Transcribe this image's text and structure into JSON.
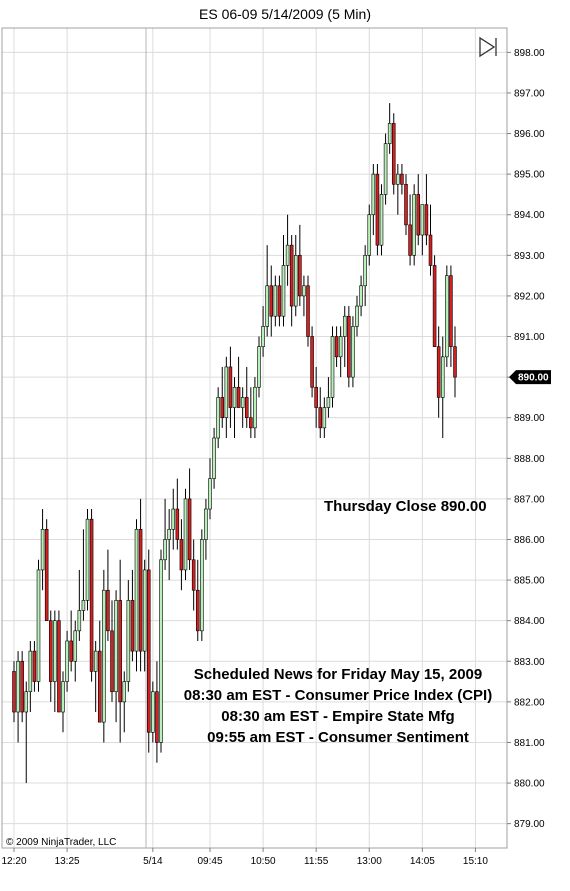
{
  "chart_data": {
    "type": "candlestick",
    "title": "ES 06-09  5/14/2009 (5 Min)",
    "ylim": [
      878.4,
      898.6
    ],
    "y_ticks": [
      "879.00",
      "880.00",
      "881.00",
      "882.00",
      "883.00",
      "884.00",
      "885.00",
      "886.00",
      "887.00",
      "888.00",
      "889.00",
      "890.00",
      "891.00",
      "892.00",
      "893.00",
      "894.00",
      "895.00",
      "896.00",
      "897.00",
      "898.00"
    ],
    "x_ticks": [
      "12:20",
      "13:25",
      "5/14",
      "09:45",
      "10:50",
      "11:55",
      "13:00",
      "14:05",
      "15:10"
    ],
    "last_price_label": "890.00",
    "grid": true,
    "colors": {
      "up": "#b9f0b9",
      "down": "#d42020",
      "wick": "#000000",
      "grid": "#dcdcdc",
      "last_price_bg": "#000000"
    },
    "candles": [
      [
        882.75,
        883.0,
        881.5,
        881.75
      ],
      [
        881.75,
        883.25,
        881.0,
        883.0
      ],
      [
        883.0,
        883.25,
        881.5,
        881.75
      ],
      [
        881.75,
        882.5,
        880.0,
        882.25
      ],
      [
        882.25,
        883.5,
        881.75,
        883.25
      ],
      [
        883.25,
        883.5,
        882.25,
        882.5
      ],
      [
        882.5,
        885.5,
        882.25,
        885.25
      ],
      [
        885.25,
        886.75,
        884.75,
        886.25
      ],
      [
        886.25,
        886.5,
        884.0,
        884.0
      ],
      [
        884.0,
        884.25,
        882.0,
        882.5
      ],
      [
        882.5,
        884.25,
        881.75,
        884.0
      ],
      [
        884.0,
        884.25,
        881.75,
        881.75
      ],
      [
        881.75,
        882.75,
        881.25,
        882.5
      ],
      [
        882.5,
        883.75,
        882.25,
        883.5
      ],
      [
        883.5,
        884.25,
        882.75,
        883.0
      ],
      [
        883.0,
        884.0,
        882.5,
        883.75
      ],
      [
        883.75,
        885.25,
        883.5,
        884.25
      ],
      [
        884.25,
        886.25,
        884.0,
        884.5
      ],
      [
        884.5,
        886.75,
        884.25,
        886.5
      ],
      [
        886.5,
        886.75,
        882.5,
        882.75
      ],
      [
        882.75,
        883.5,
        881.75,
        883.25
      ],
      [
        883.25,
        884.0,
        881.5,
        881.5
      ],
      [
        881.5,
        885.25,
        881.0,
        884.75
      ],
      [
        884.75,
        885.75,
        883.5,
        883.75
      ],
      [
        883.75,
        884.5,
        882.0,
        882.25
      ],
      [
        882.25,
        884.75,
        881.5,
        884.5
      ],
      [
        884.5,
        885.5,
        881.0,
        882.0
      ],
      [
        882.0,
        882.75,
        881.25,
        882.5
      ],
      [
        882.5,
        885.0,
        882.25,
        884.5
      ],
      [
        884.5,
        885.25,
        883.0,
        883.25
      ],
      [
        883.25,
        886.5,
        882.75,
        886.25
      ],
      [
        886.25,
        887.0,
        882.75,
        883.25
      ],
      [
        883.25,
        885.5,
        882.75,
        885.25
      ],
      [
        885.25,
        885.75,
        880.75,
        881.25
      ],
      [
        881.25,
        882.5,
        881.0,
        882.25
      ],
      [
        882.25,
        883.0,
        880.5,
        881.0
      ],
      [
        881.0,
        885.75,
        880.75,
        885.5
      ],
      [
        885.5,
        887.0,
        885.25,
        886.0
      ],
      [
        886.0,
        886.75,
        885.0,
        886.25
      ],
      [
        886.25,
        887.25,
        885.75,
        886.75
      ],
      [
        886.75,
        887.5,
        885.75,
        886.0
      ],
      [
        886.0,
        886.5,
        884.75,
        885.25
      ],
      [
        885.25,
        887.25,
        885.0,
        887.0
      ],
      [
        887.0,
        887.75,
        885.25,
        885.5
      ],
      [
        885.5,
        886.0,
        884.25,
        884.75
      ],
      [
        884.75,
        885.5,
        883.5,
        883.75
      ],
      [
        883.75,
        886.25,
        883.5,
        886.0
      ],
      [
        886.0,
        887.0,
        885.5,
        886.75
      ],
      [
        886.75,
        888.0,
        886.5,
        887.5
      ],
      [
        887.5,
        888.75,
        887.25,
        888.5
      ],
      [
        888.5,
        889.75,
        888.25,
        889.5
      ],
      [
        889.5,
        890.25,
        888.75,
        889.0
      ],
      [
        889.0,
        890.5,
        888.5,
        890.25
      ],
      [
        890.25,
        890.75,
        888.75,
        889.25
      ],
      [
        889.25,
        890.0,
        888.5,
        889.75
      ],
      [
        889.75,
        890.5,
        889.25,
        889.25
      ],
      [
        889.25,
        889.75,
        888.75,
        889.5
      ],
      [
        889.5,
        890.25,
        888.75,
        889.0
      ],
      [
        889.0,
        889.75,
        888.5,
        888.75
      ],
      [
        888.75,
        890.0,
        888.5,
        889.75
      ],
      [
        889.75,
        891.0,
        889.5,
        890.75
      ],
      [
        890.75,
        891.75,
        890.5,
        891.25
      ],
      [
        891.25,
        893.25,
        891.0,
        892.25
      ],
      [
        892.25,
        892.75,
        891.0,
        891.5
      ],
      [
        891.5,
        892.5,
        891.25,
        892.25
      ],
      [
        892.25,
        892.5,
        891.25,
        891.5
      ],
      [
        891.5,
        893.5,
        891.25,
        892.75
      ],
      [
        892.75,
        894.0,
        892.25,
        893.25
      ],
      [
        893.25,
        893.5,
        891.25,
        891.75
      ],
      [
        891.75,
        893.5,
        891.5,
        893.0
      ],
      [
        893.0,
        893.75,
        891.75,
        892.0
      ],
      [
        892.0,
        892.5,
        891.5,
        892.25
      ],
      [
        892.25,
        892.5,
        890.75,
        891.0
      ],
      [
        891.0,
        891.25,
        889.5,
        889.75
      ],
      [
        889.75,
        890.25,
        888.75,
        889.25
      ],
      [
        889.25,
        889.75,
        888.5,
        888.75
      ],
      [
        888.75,
        889.5,
        888.5,
        889.25
      ],
      [
        889.25,
        890.0,
        889.0,
        889.5
      ],
      [
        889.5,
        891.25,
        889.25,
        891.0
      ],
      [
        891.0,
        891.25,
        890.25,
        890.5
      ],
      [
        890.5,
        891.25,
        890.0,
        891.0
      ],
      [
        891.0,
        891.75,
        890.25,
        891.5
      ],
      [
        891.5,
        891.75,
        889.75,
        890.0
      ],
      [
        890.0,
        891.5,
        889.75,
        891.25
      ],
      [
        891.25,
        892.0,
        891.0,
        891.75
      ],
      [
        891.75,
        892.5,
        891.5,
        892.25
      ],
      [
        892.25,
        893.25,
        891.75,
        893.0
      ],
      [
        893.0,
        894.25,
        892.75,
        894.0
      ],
      [
        894.0,
        895.25,
        893.5,
        895.0
      ],
      [
        895.0,
        895.25,
        893.0,
        893.25
      ],
      [
        893.25,
        894.75,
        893.0,
        894.5
      ],
      [
        894.5,
        896.0,
        894.25,
        895.75
      ],
      [
        895.75,
        896.75,
        895.5,
        896.25
      ],
      [
        896.25,
        896.5,
        894.5,
        894.75
      ],
      [
        894.75,
        895.25,
        894.0,
        895.0
      ],
      [
        895.0,
        895.25,
        894.5,
        894.75
      ],
      [
        894.75,
        895.0,
        893.5,
        893.75
      ],
      [
        893.75,
        894.5,
        892.75,
        893.0
      ],
      [
        893.0,
        894.75,
        892.75,
        894.5
      ],
      [
        894.5,
        895.0,
        893.25,
        893.5
      ],
      [
        893.5,
        894.25,
        893.0,
        894.25
      ],
      [
        894.25,
        895.0,
        893.25,
        893.5
      ],
      [
        893.5,
        894.25,
        892.5,
        892.75
      ],
      [
        892.75,
        893.0,
        890.75,
        890.75
      ],
      [
        890.75,
        891.25,
        889.0,
        889.5
      ],
      [
        889.5,
        891.0,
        888.5,
        890.5
      ],
      [
        890.5,
        892.75,
        890.25,
        892.5
      ],
      [
        892.5,
        892.75,
        890.25,
        890.75
      ],
      [
        890.75,
        891.25,
        889.5,
        890.0
      ]
    ]
  },
  "annotations": {
    "close_text": "Thursday Close 890.00",
    "news": [
      "Scheduled News for Friday May 15, 2009",
      "08:30 am EST - Consumer Price Index (CPI)",
      "08:30 am EST - Empire State Mfg",
      "09:55 am EST - Consumer Sentiment"
    ]
  },
  "copyright": "© 2009 NinjaTrader, LLC"
}
